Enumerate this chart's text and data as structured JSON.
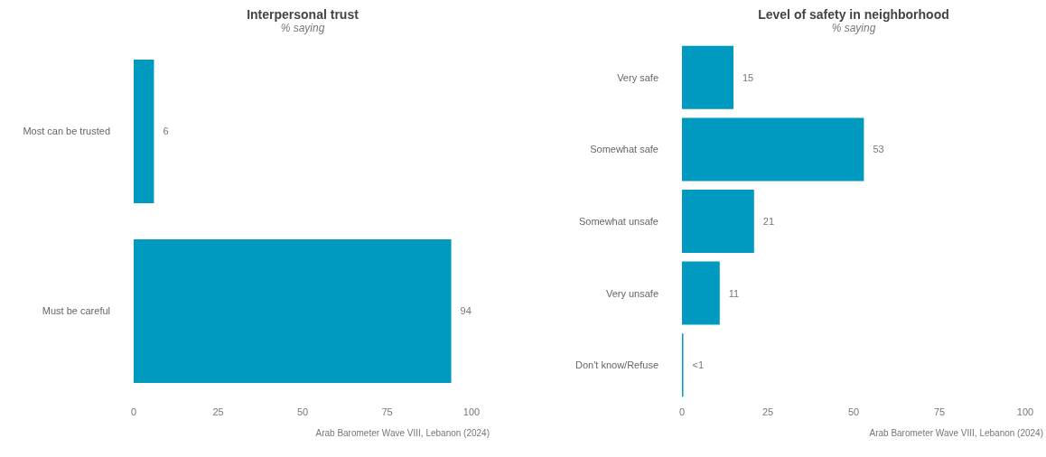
{
  "chart_data": [
    {
      "type": "bar",
      "orientation": "horizontal",
      "title": "Interpersonal trust",
      "subtitle": "% saying",
      "categories": [
        "Most can be trusted",
        "Must be careful"
      ],
      "values": [
        6,
        94
      ],
      "color": "#0099c0",
      "xlim": [
        0,
        100
      ],
      "xticks": [
        0,
        25,
        50,
        75,
        100
      ],
      "data_labels": true,
      "annotations": [
        "Arab Barometer Wave VIII, Lebanon (2024)"
      ]
    },
    {
      "type": "bar",
      "orientation": "horizontal",
      "title": "Level of safety in neighborhood",
      "subtitle": "% saying",
      "categories": [
        "Very safe",
        "Somewhat safe",
        "Somewhat unsafe",
        "Very unsafe",
        "Don't know/Refuse"
      ],
      "values": [
        15,
        53,
        21,
        11,
        0.4
      ],
      "value_labels": [
        "15",
        "53",
        "21",
        "11",
        "<1"
      ],
      "color": "#0099c0",
      "xlim": [
        0,
        100
      ],
      "xticks": [
        0,
        25,
        50,
        75,
        100
      ],
      "annotations": [
        "Arab Barometer Wave VIII, Lebanon (2024)"
      ]
    }
  ]
}
